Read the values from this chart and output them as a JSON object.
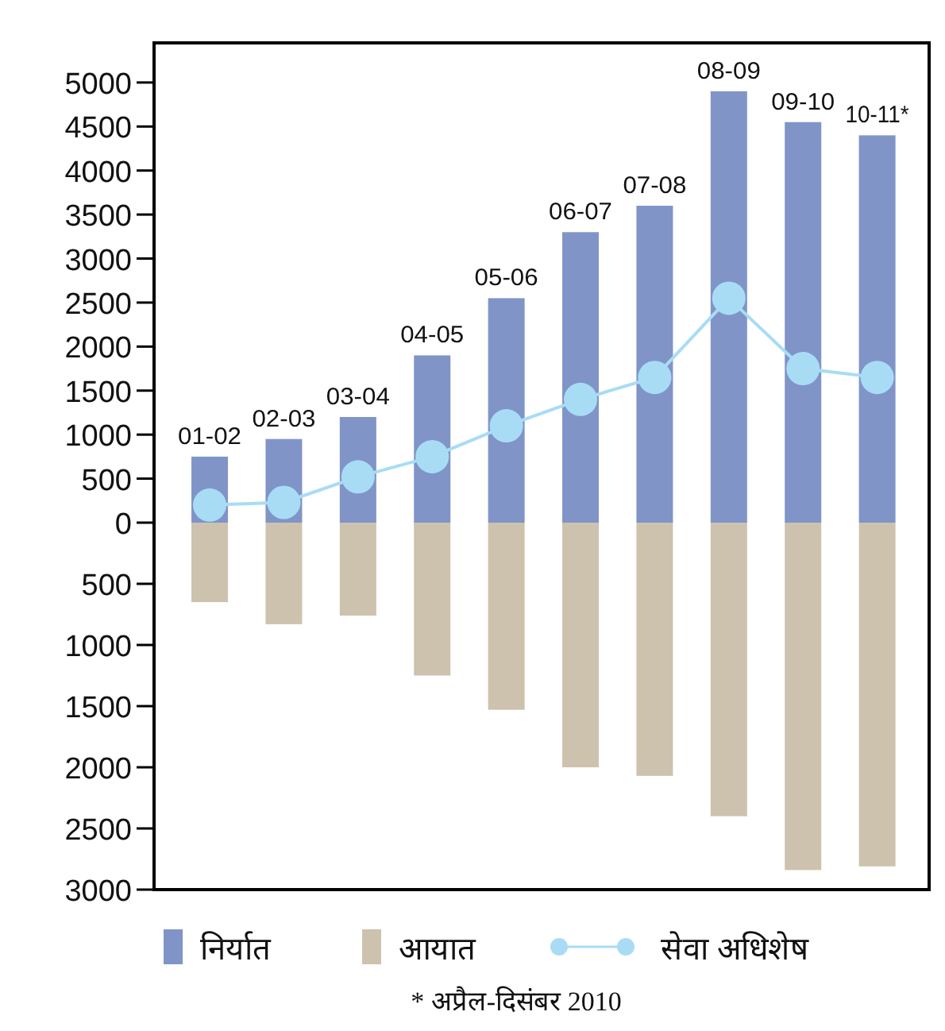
{
  "chart_data": [
    {
      "type": "bar",
      "categories": [
        "01-02",
        "02-03",
        "03-04",
        "04-05",
        "05-06",
        "06-07",
        "07-08",
        "08-09",
        "09-10",
        "10-11*"
      ],
      "series": [
        {
          "name": "निर्यात",
          "color": "#8094c8",
          "values": [
            750,
            950,
            1200,
            1900,
            2550,
            3300,
            3600,
            4900,
            4550,
            4400
          ]
        },
        {
          "name": "सेवा अधिशेष",
          "type": "line",
          "color": "#a8dcf5",
          "marker": "circle",
          "values": [
            200,
            230,
            520,
            750,
            1100,
            1400,
            1650,
            2550,
            1750,
            1650
          ]
        }
      ],
      "ylim": [
        0,
        5450
      ],
      "yticks": [
        0,
        500,
        1000,
        1500,
        2000,
        2500,
        3000,
        3500,
        4000,
        4500,
        5000
      ],
      "grid": false,
      "legend": "bottom"
    },
    {
      "type": "bar",
      "categories": [
        null,
        null,
        null,
        null,
        null,
        null,
        null,
        null,
        null,
        null
      ],
      "series": [
        {
          "name": "आयात",
          "color": "#cdc2ae",
          "values": [
            650,
            830,
            760,
            1250,
            1530,
            2000,
            2070,
            2400,
            2840,
            2810
          ]
        }
      ],
      "ylim": [
        3000,
        0
      ],
      "yticks": [
        500,
        1000,
        1500,
        2000,
        2500,
        3000
      ],
      "tick_labels": "y",
      "grid": false,
      "legend": "bottom",
      "annotations": [
        "* अप्रैल-दिसंबर 2010"
      ]
    }
  ]
}
